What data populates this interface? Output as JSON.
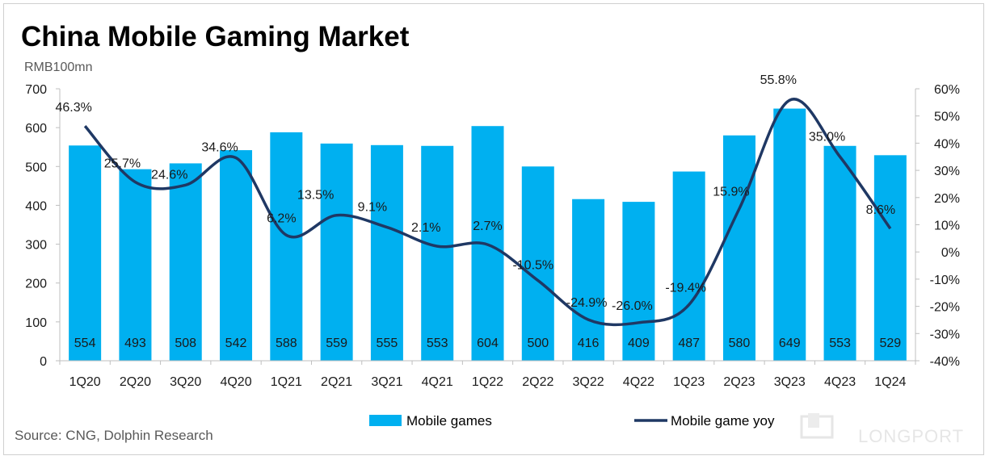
{
  "chart_data": {
    "type": "bar",
    "title": "China Mobile Gaming Market",
    "y_unit_label": "RMB100mn",
    "source": "Source: CNG, Dolphin Research",
    "watermark": "LONGPORT",
    "categories": [
      "1Q20",
      "2Q20",
      "3Q20",
      "4Q20",
      "1Q21",
      "2Q21",
      "3Q21",
      "4Q21",
      "1Q22",
      "2Q22",
      "3Q22",
      "4Q22",
      "1Q23",
      "2Q23",
      "3Q23",
      "4Q23",
      "1Q24"
    ],
    "series": [
      {
        "name": "Mobile games",
        "type": "bar",
        "axis": "left",
        "color": "#00b0f0",
        "values": [
          554,
          493,
          508,
          542,
          588,
          559,
          555,
          553,
          604,
          500,
          416,
          409,
          487,
          580,
          649,
          553,
          529
        ],
        "labels": [
          "554",
          "493",
          "508",
          "542",
          "588",
          "559",
          "555",
          "553",
          "604",
          "500",
          "416",
          "409",
          "487",
          "580",
          "649",
          "553",
          "529"
        ]
      },
      {
        "name": "Mobile game yoy",
        "type": "line",
        "axis": "right",
        "color": "#1f3864",
        "values": [
          46.3,
          25.7,
          24.6,
          34.6,
          6.2,
          13.5,
          9.1,
          2.1,
          2.7,
          -10.5,
          -24.9,
          -26.0,
          -19.4,
          15.9,
          55.8,
          35.0,
          8.6
        ],
        "labels": [
          "46.3%",
          "25.7%",
          "24.6%",
          "34.6%",
          "6.2%",
          "13.5%",
          "9.1%",
          "2.1%",
          "2.7%",
          "-10.5%",
          "-24.9%",
          "-26.0%",
          "-19.4%",
          "15.9%",
          "55.8%",
          "35.0%",
          "8.6%"
        ]
      }
    ],
    "y_left": {
      "min": 0,
      "max": 700,
      "ticks": [
        "0",
        "100",
        "200",
        "300",
        "400",
        "500",
        "600",
        "700"
      ]
    },
    "y_right": {
      "min": -40,
      "max": 60,
      "ticks": [
        "-40%",
        "-30%",
        "-20%",
        "-10%",
        "0%",
        "10%",
        "20%",
        "30%",
        "40%",
        "50%",
        "60%"
      ]
    },
    "legend_position": "bottom",
    "grid": false
  }
}
